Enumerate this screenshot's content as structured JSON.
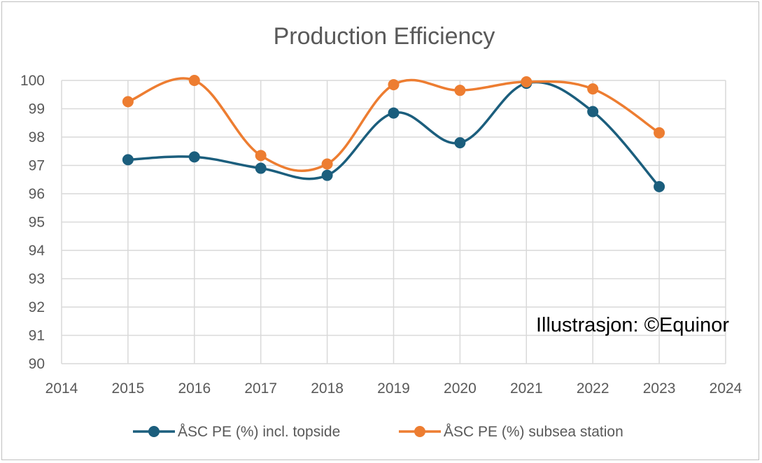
{
  "chart_data": {
    "type": "line",
    "title": "Production Efficiency",
    "xlabel": "",
    "ylabel": "",
    "xlim": [
      2014,
      2024
    ],
    "ylim": [
      90,
      100
    ],
    "x_ticks": [
      2014,
      2015,
      2016,
      2017,
      2018,
      2019,
      2020,
      2021,
      2022,
      2023,
      2024
    ],
    "y_ticks": [
      90,
      91,
      92,
      93,
      94,
      95,
      96,
      97,
      98,
      99,
      100
    ],
    "grid": true,
    "legend_position": "bottom",
    "annotation": "Illustrasjon: ©Equinor",
    "series": [
      {
        "name": "ÅSC PE (%) incl. topside",
        "color": "#1b5e7d",
        "x": [
          2015,
          2016,
          2017,
          2018,
          2019,
          2020,
          2021,
          2022,
          2023
        ],
        "values": [
          97.2,
          97.3,
          96.9,
          96.65,
          98.85,
          97.8,
          99.9,
          98.9,
          96.25
        ]
      },
      {
        "name": "ÅSC PE (%) subsea station",
        "color": "#ed7d31",
        "x": [
          2015,
          2016,
          2017,
          2018,
          2019,
          2020,
          2021,
          2022,
          2023
        ],
        "values": [
          99.25,
          100.0,
          97.35,
          97.05,
          99.85,
          99.65,
          99.95,
          99.7,
          98.15
        ]
      }
    ]
  }
}
